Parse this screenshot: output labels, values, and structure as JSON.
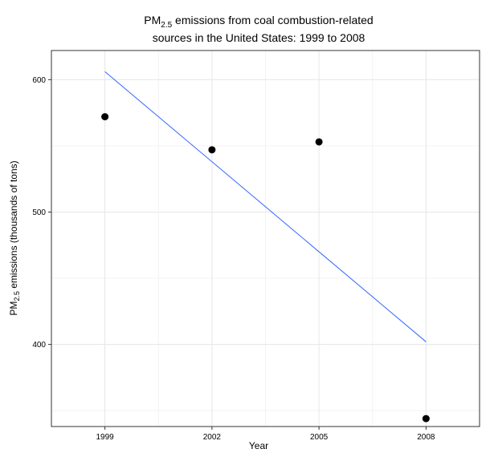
{
  "chart_data": {
    "type": "scatter",
    "title_line1_main": "PM",
    "title_line1_sub": "2.5",
    "title_line1_rest": " emissions from coal combustion-related",
    "title_line2": "sources in the United States: 1999 to 2008",
    "xlabel": "Year",
    "ylabel_main": "PM",
    "ylabel_sub": "2.5",
    "ylabel_rest": " emissions (thousands of tons)",
    "x_ticks": [
      "1999",
      "2002",
      "2005",
      "2008"
    ],
    "y_ticks": [
      "400",
      "500",
      "600"
    ],
    "xlim": [
      1997.5,
      2009.5
    ],
    "ylim": [
      338,
      622
    ],
    "grid": true,
    "points": [
      {
        "x": 1999,
        "y": 572
      },
      {
        "x": 2002,
        "y": 547
      },
      {
        "x": 2005,
        "y": 553
      },
      {
        "x": 2008,
        "y": 344
      }
    ],
    "trend_line": {
      "x": [
        1999,
        2008
      ],
      "y": [
        606,
        402
      ]
    },
    "colors": {
      "points": "#000000",
      "trend": "#3366ff",
      "panel_border": "#333333"
    }
  }
}
